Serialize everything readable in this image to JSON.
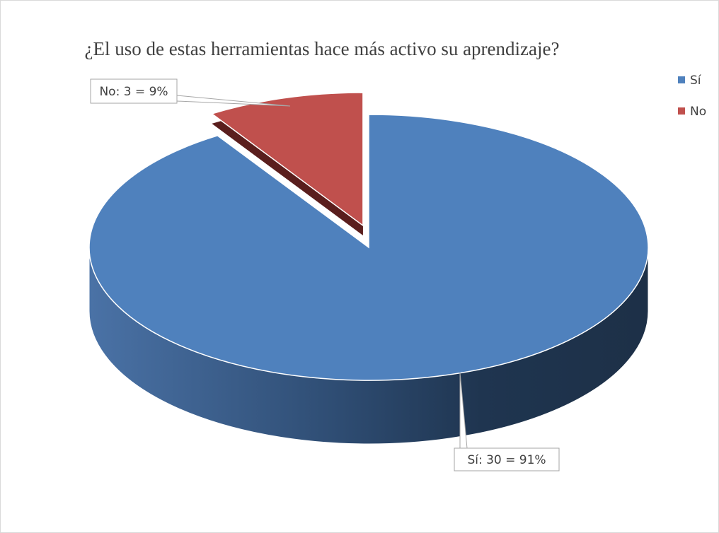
{
  "chart_data": {
    "type": "pie",
    "title": "¿El uso de estas herramientas hace más activo su aprendizaje?",
    "categories": [
      "Sí",
      "No"
    ],
    "values": [
      30,
      3
    ],
    "value_labels": [
      "Sí: 30 = 91%",
      "No: 3 = 9%"
    ],
    "colors": [
      "#4f81bd",
      "#c0504d"
    ],
    "legend": "right"
  }
}
